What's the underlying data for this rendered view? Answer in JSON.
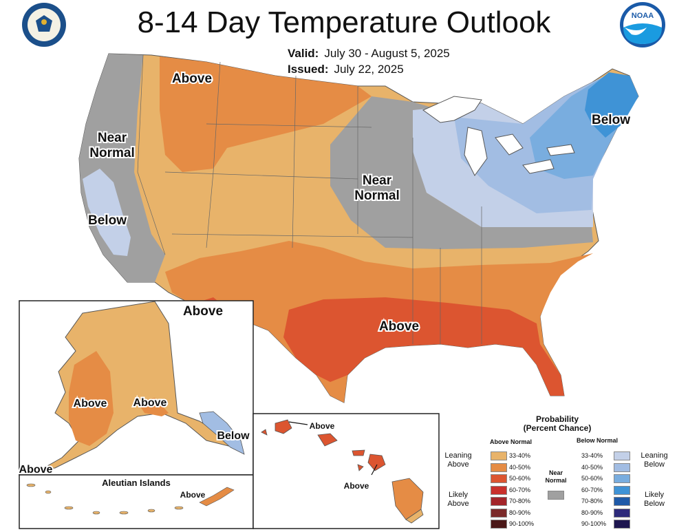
{
  "title": "8-14 Day Temperature Outlook",
  "valid": {
    "label": "Valid:",
    "value": "July 30 - August 5, 2025"
  },
  "issued": {
    "label": "Issued:",
    "value": "July 22, 2025"
  },
  "map_labels": {
    "above_nw": "Above",
    "near_normal_west": [
      "Near",
      "Normal"
    ],
    "below_west": "Below",
    "near_normal_central": [
      "Near",
      "Normal"
    ],
    "below_ne": "Below",
    "above_sw": "Above",
    "above_south": "Above",
    "ak_above_1": "Above",
    "ak_above_2": "Above",
    "ak_below": "Below",
    "ak_above_3": "Above",
    "aleutian_title": "Aleutian Islands",
    "aleutian_above": "Above",
    "hi_above_1": "Above",
    "hi_above_2": "Above"
  },
  "legend": {
    "title": [
      "Probability",
      "(Percent Chance)"
    ],
    "above_header": "Above Normal",
    "below_header": "Below Normal",
    "leaning_above": [
      "Leaning",
      "Above"
    ],
    "likely_above": [
      "Likely",
      "Above"
    ],
    "leaning_below": [
      "Leaning",
      "Below"
    ],
    "likely_below": [
      "Likely",
      "Below"
    ],
    "near_normal": [
      "Near",
      "Normal"
    ],
    "above": [
      {
        "label": "33-40%",
        "color": "#e8b36a"
      },
      {
        "label": "40-50%",
        "color": "#e58c45"
      },
      {
        "label": "50-60%",
        "color": "#dc5530"
      },
      {
        "label": "60-70%",
        "color": "#c9302c"
      },
      {
        "label": "70-80%",
        "color": "#a3252a"
      },
      {
        "label": "80-90%",
        "color": "#7a2a2a"
      },
      {
        "label": "90-100%",
        "color": "#4a1818"
      }
    ],
    "below": [
      {
        "label": "33-40%",
        "color": "#c3d0e8"
      },
      {
        "label": "40-50%",
        "color": "#a2bde3"
      },
      {
        "label": "50-60%",
        "color": "#79addf"
      },
      {
        "label": "60-70%",
        "color": "#3f93d6"
      },
      {
        "label": "70-80%",
        "color": "#1f5aa8"
      },
      {
        "label": "80-90%",
        "color": "#2d2a7a"
      },
      {
        "label": "90-100%",
        "color": "#1e1650"
      }
    ],
    "near_color": "#a0a0a0"
  },
  "colors": {
    "near_normal": "#a0a0a0",
    "lean_above": "#e8b36a",
    "above_40": "#e58c45",
    "above_50": "#dc5530",
    "lean_below": "#c3d0e8",
    "below_40": "#a2bde3",
    "below_50": "#79addf",
    "below_60": "#3f93d6",
    "water": "#ffffff"
  },
  "logos": {
    "left": "department-of-commerce-seal",
    "right": "noaa-logo",
    "noaa_text": "NOAA"
  }
}
